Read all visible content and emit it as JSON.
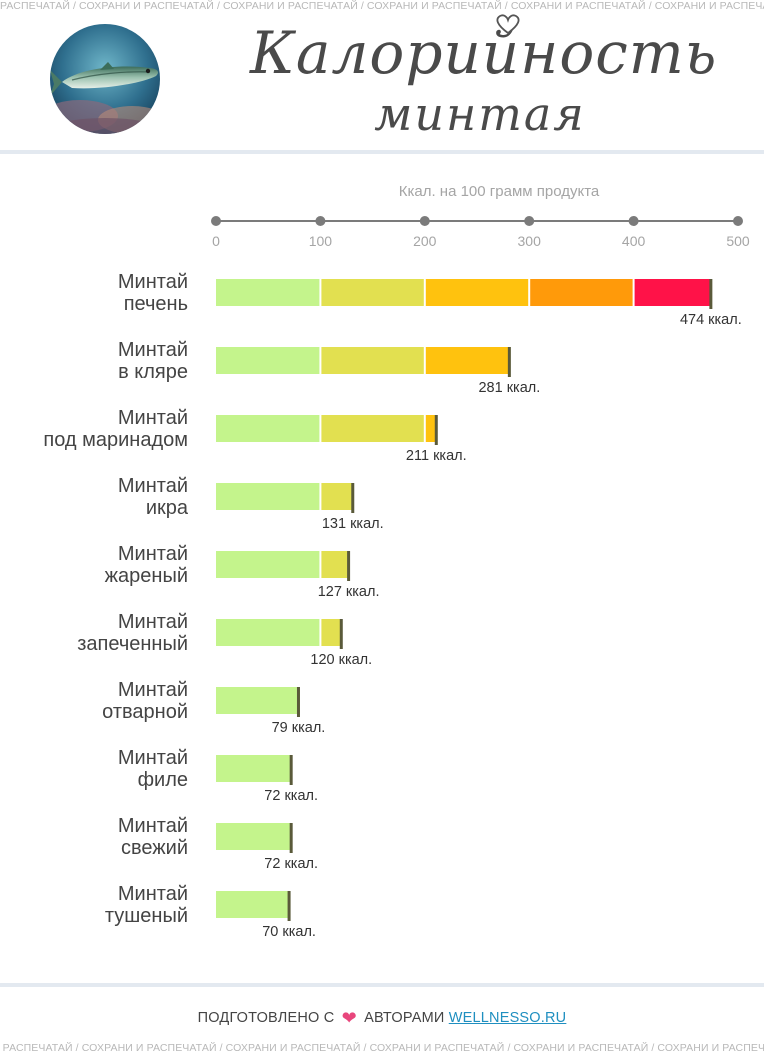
{
  "banner_text": "РАСПЕЧАТАЙ / СОХРАНИ И РАСПЕЧАТАЙ / СОХРАНИ И РАСПЕЧАТАЙ / СОХРАНИ И РАСПЕЧАТАЙ / СОХРАНИ И РАСПЕЧАТАЙ / СОХРАНИ И РАСПЕЧАТАЙ / СОХРАНИ И",
  "banner_text_bottom": "И РАСПЕЧАТАЙ / СОХРАНИ И РАСПЕЧАТАЙ / СОХРАНИ И РАСПЕЧАТАЙ / СОХРАНИ И РАСПЕЧАТАЙ / СОХРАНИ И РАСПЕЧАТАЙ / СОХРАНИ И РАСПЕЧАТАЙ / СОХРАНИ И",
  "title_line1": "Калорийность",
  "title_line2": "минтая",
  "footer": {
    "prefix": "ПОДГОТОВЛЕНО С",
    "suffix": "АВТОРАМИ",
    "link": "WELLNESSO.RU"
  },
  "colors": {
    "segments": [
      "#c4f48c",
      "#e2e050",
      "#ffc20e",
      "#ff9a0a",
      "#ff1248"
    ],
    "axis": "#7b7b7b",
    "bar_end": "#5a5a3a"
  },
  "chart_data": {
    "type": "bar",
    "orientation": "horizontal",
    "xlabel": "Ккал. на 100 грамм продукта",
    "xlim": [
      0,
      500
    ],
    "xticks": [
      0,
      100,
      200,
      300,
      400,
      500
    ],
    "categories": [
      [
        "Минтай",
        "печень"
      ],
      [
        "Минтай",
        "в кляре"
      ],
      [
        "Минтай",
        "под маринадом"
      ],
      [
        "Минтай",
        "икра"
      ],
      [
        "Минтай",
        "жареный"
      ],
      [
        "Минтай",
        "запеченный"
      ],
      [
        "Минтай",
        "отварной"
      ],
      [
        "Минтай",
        "филе"
      ],
      [
        "Минтай",
        "свежий"
      ],
      [
        "Минтай",
        "тушеный"
      ]
    ],
    "values": [
      474,
      281,
      211,
      131,
      127,
      120,
      79,
      72,
      72,
      70
    ],
    "value_labels": [
      "474 ккал.",
      "281 ккал.",
      "211 ккал.",
      "131 ккал.",
      "127 ккал.",
      "120 ккал.",
      "79 ккал.",
      "72 ккал.",
      "72 ккал.",
      "70 ккал."
    ],
    "axis_position": "top",
    "legend": "none",
    "grid": false
  }
}
